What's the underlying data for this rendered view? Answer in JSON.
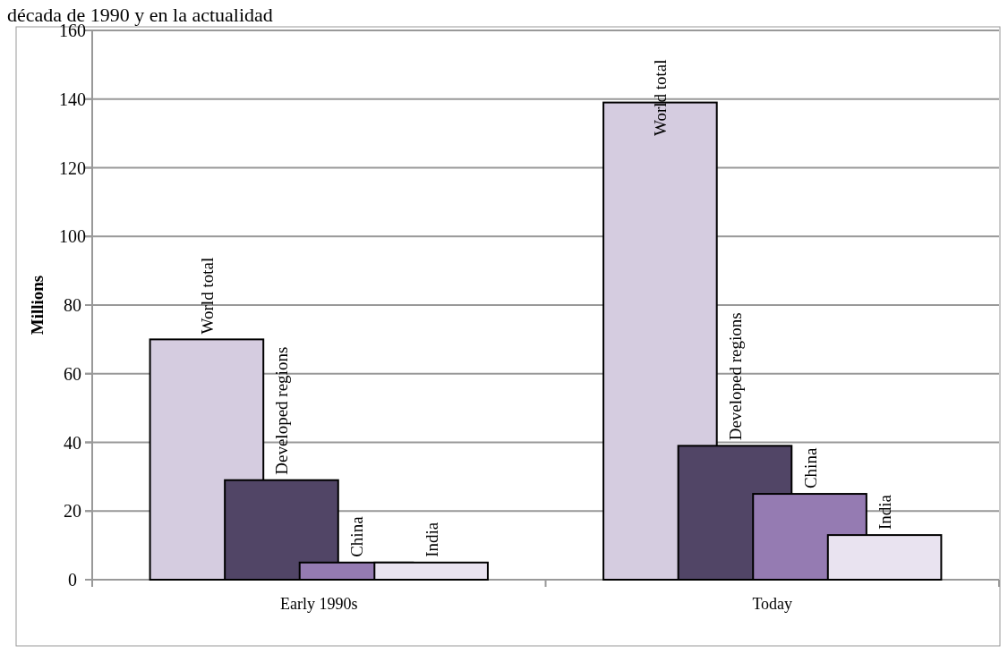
{
  "chart_data": {
    "type": "bar",
    "title": "década de 1990 y en la actualidad",
    "ylabel": "Millions",
    "categories": [
      "Early 1990s",
      "Today"
    ],
    "series": [
      {
        "name": "World total",
        "color": "#d5cce0",
        "values": [
          70,
          139
        ]
      },
      {
        "name": "Developed regions",
        "color": "#514566",
        "values": [
          29,
          39
        ]
      },
      {
        "name": "China",
        "color": "#957bb2",
        "values": [
          5,
          25
        ]
      },
      {
        "name": "India",
        "color": "#e9e3f0",
        "values": [
          5,
          13
        ]
      }
    ],
    "ylim": [
      0,
      160
    ],
    "yticks": [
      0,
      20,
      40,
      60,
      80,
      100,
      120,
      140,
      160
    ],
    "grid": "y"
  }
}
